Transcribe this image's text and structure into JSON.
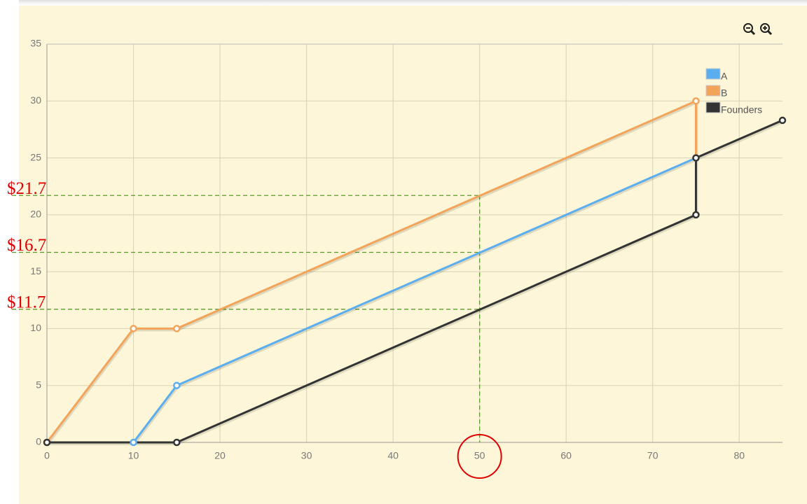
{
  "chart_data": {
    "type": "line",
    "xlim": [
      0,
      85
    ],
    "xticks": [
      0,
      10,
      20,
      30,
      40,
      50,
      60,
      70,
      80
    ],
    "ylim": [
      0,
      35
    ],
    "yticks": [
      0,
      5,
      10,
      15,
      20,
      25,
      30,
      35
    ],
    "grid": true,
    "legend": "top-right",
    "series": [
      {
        "name": "A",
        "color": "#5aaef0",
        "x": [
          10,
          15,
          75
        ],
        "values": [
          0,
          5,
          25
        ]
      },
      {
        "name": "B",
        "color": "#f2a45a",
        "x": [
          0,
          10,
          15,
          75,
          75
        ],
        "values": [
          0,
          10,
          10,
          30,
          25
        ]
      },
      {
        "name": "Founders",
        "color": "#333333",
        "x": [
          0,
          15,
          75,
          75,
          85
        ],
        "values": [
          0,
          0,
          20,
          25,
          28.3
        ]
      }
    ],
    "annotations": [
      {
        "label": "$21.7",
        "value": 21.7
      },
      {
        "label": "$16.7",
        "value": 16.7
      },
      {
        "label": "$11.7",
        "value": 11.7
      }
    ],
    "marker_x": 50
  }
}
